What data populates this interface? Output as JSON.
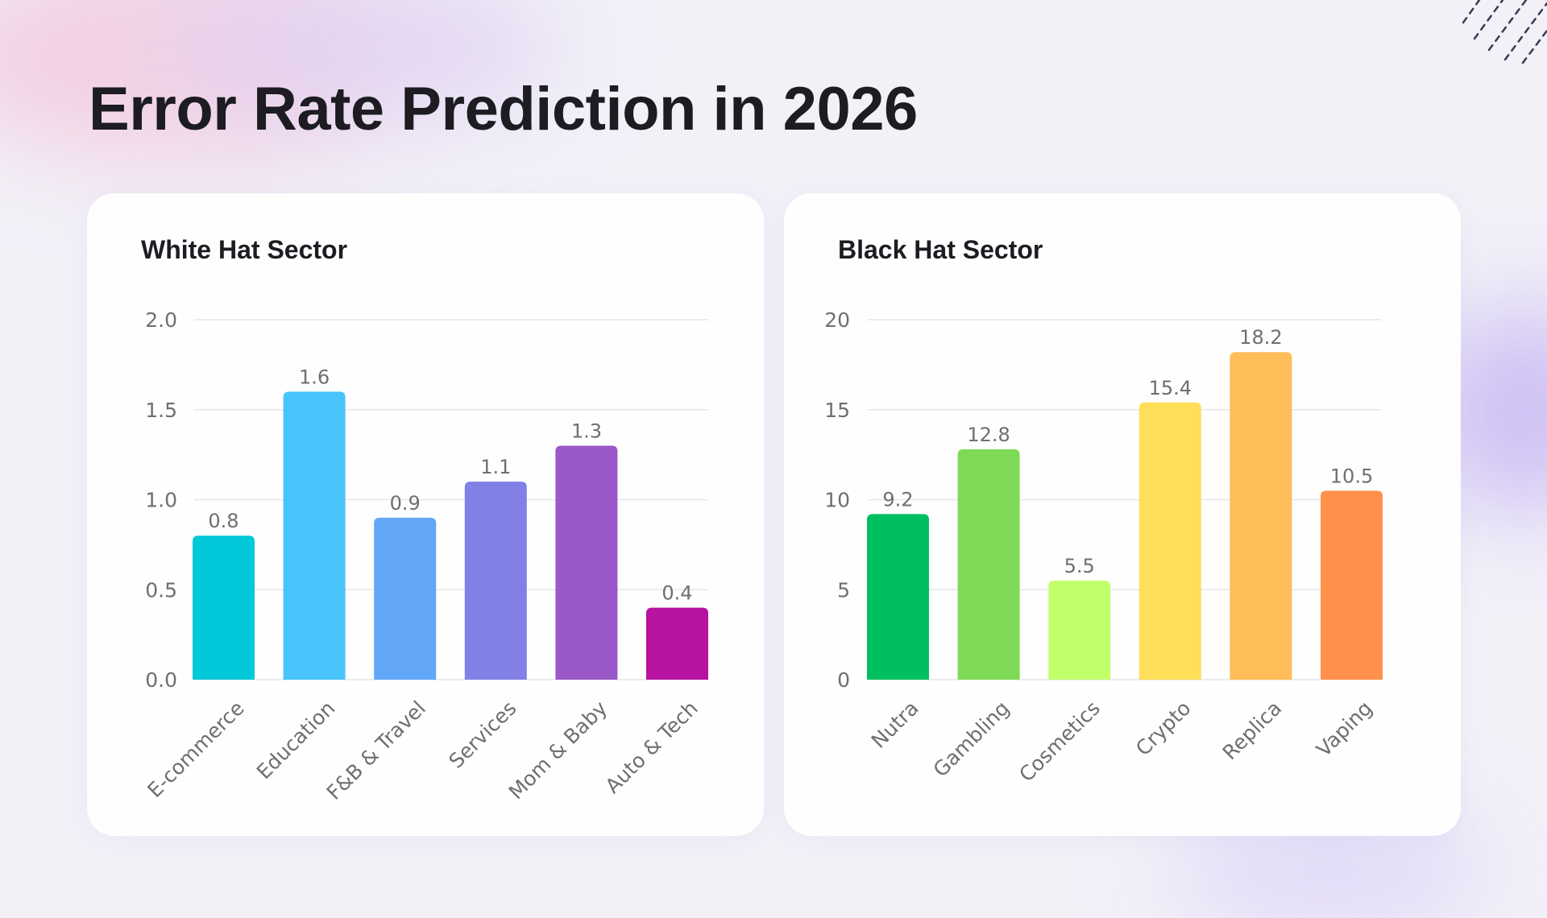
{
  "title": "Error Rate Prediction in 2026",
  "chart_data": [
    {
      "type": "bar",
      "title": "White Hat Sector",
      "categories": [
        "E-commerce",
        "Education",
        "F&B & Travel",
        "Services",
        "Mom & Baby",
        "Auto & Tech"
      ],
      "values": [
        0.8,
        1.6,
        0.9,
        1.1,
        1.3,
        0.4
      ],
      "value_labels": [
        "0.8",
        "1.6",
        "0.9",
        "1.1",
        "1.3",
        "0.4"
      ],
      "colors": [
        "#00c8d9",
        "#48c4fb",
        "#62a6f7",
        "#8080e6",
        "#9a58c8",
        "#b812a0"
      ],
      "ylim": [
        0,
        2.0
      ],
      "yticks": [
        "0.0",
        "0.5",
        "1.0",
        "1.5",
        "2.0"
      ],
      "ytick_values": [
        0,
        0.5,
        1.0,
        1.5,
        2.0
      ],
      "grid": true,
      "xlabel": "",
      "ylabel": ""
    },
    {
      "type": "bar",
      "title": "Black Hat Sector",
      "categories": [
        "Nutra",
        "Gambling",
        "Cosmetics",
        "Crypto",
        "Replica",
        "Vaping"
      ],
      "values": [
        9.2,
        12.8,
        5.5,
        15.4,
        18.2,
        10.5
      ],
      "value_labels": [
        "9.2",
        "12.8",
        "5.5",
        "15.4",
        "18.2",
        "10.5"
      ],
      "colors": [
        "#00bf60",
        "#7ed957",
        "#c1ff6b",
        "#ffde59",
        "#ffbd59",
        "#ff914d"
      ],
      "ylim": [
        0,
        20
      ],
      "yticks": [
        "0",
        "5",
        "10",
        "15",
        "20"
      ],
      "ytick_values": [
        0,
        5,
        10,
        15,
        20
      ],
      "grid": true,
      "xlabel": "",
      "ylabel": ""
    }
  ]
}
